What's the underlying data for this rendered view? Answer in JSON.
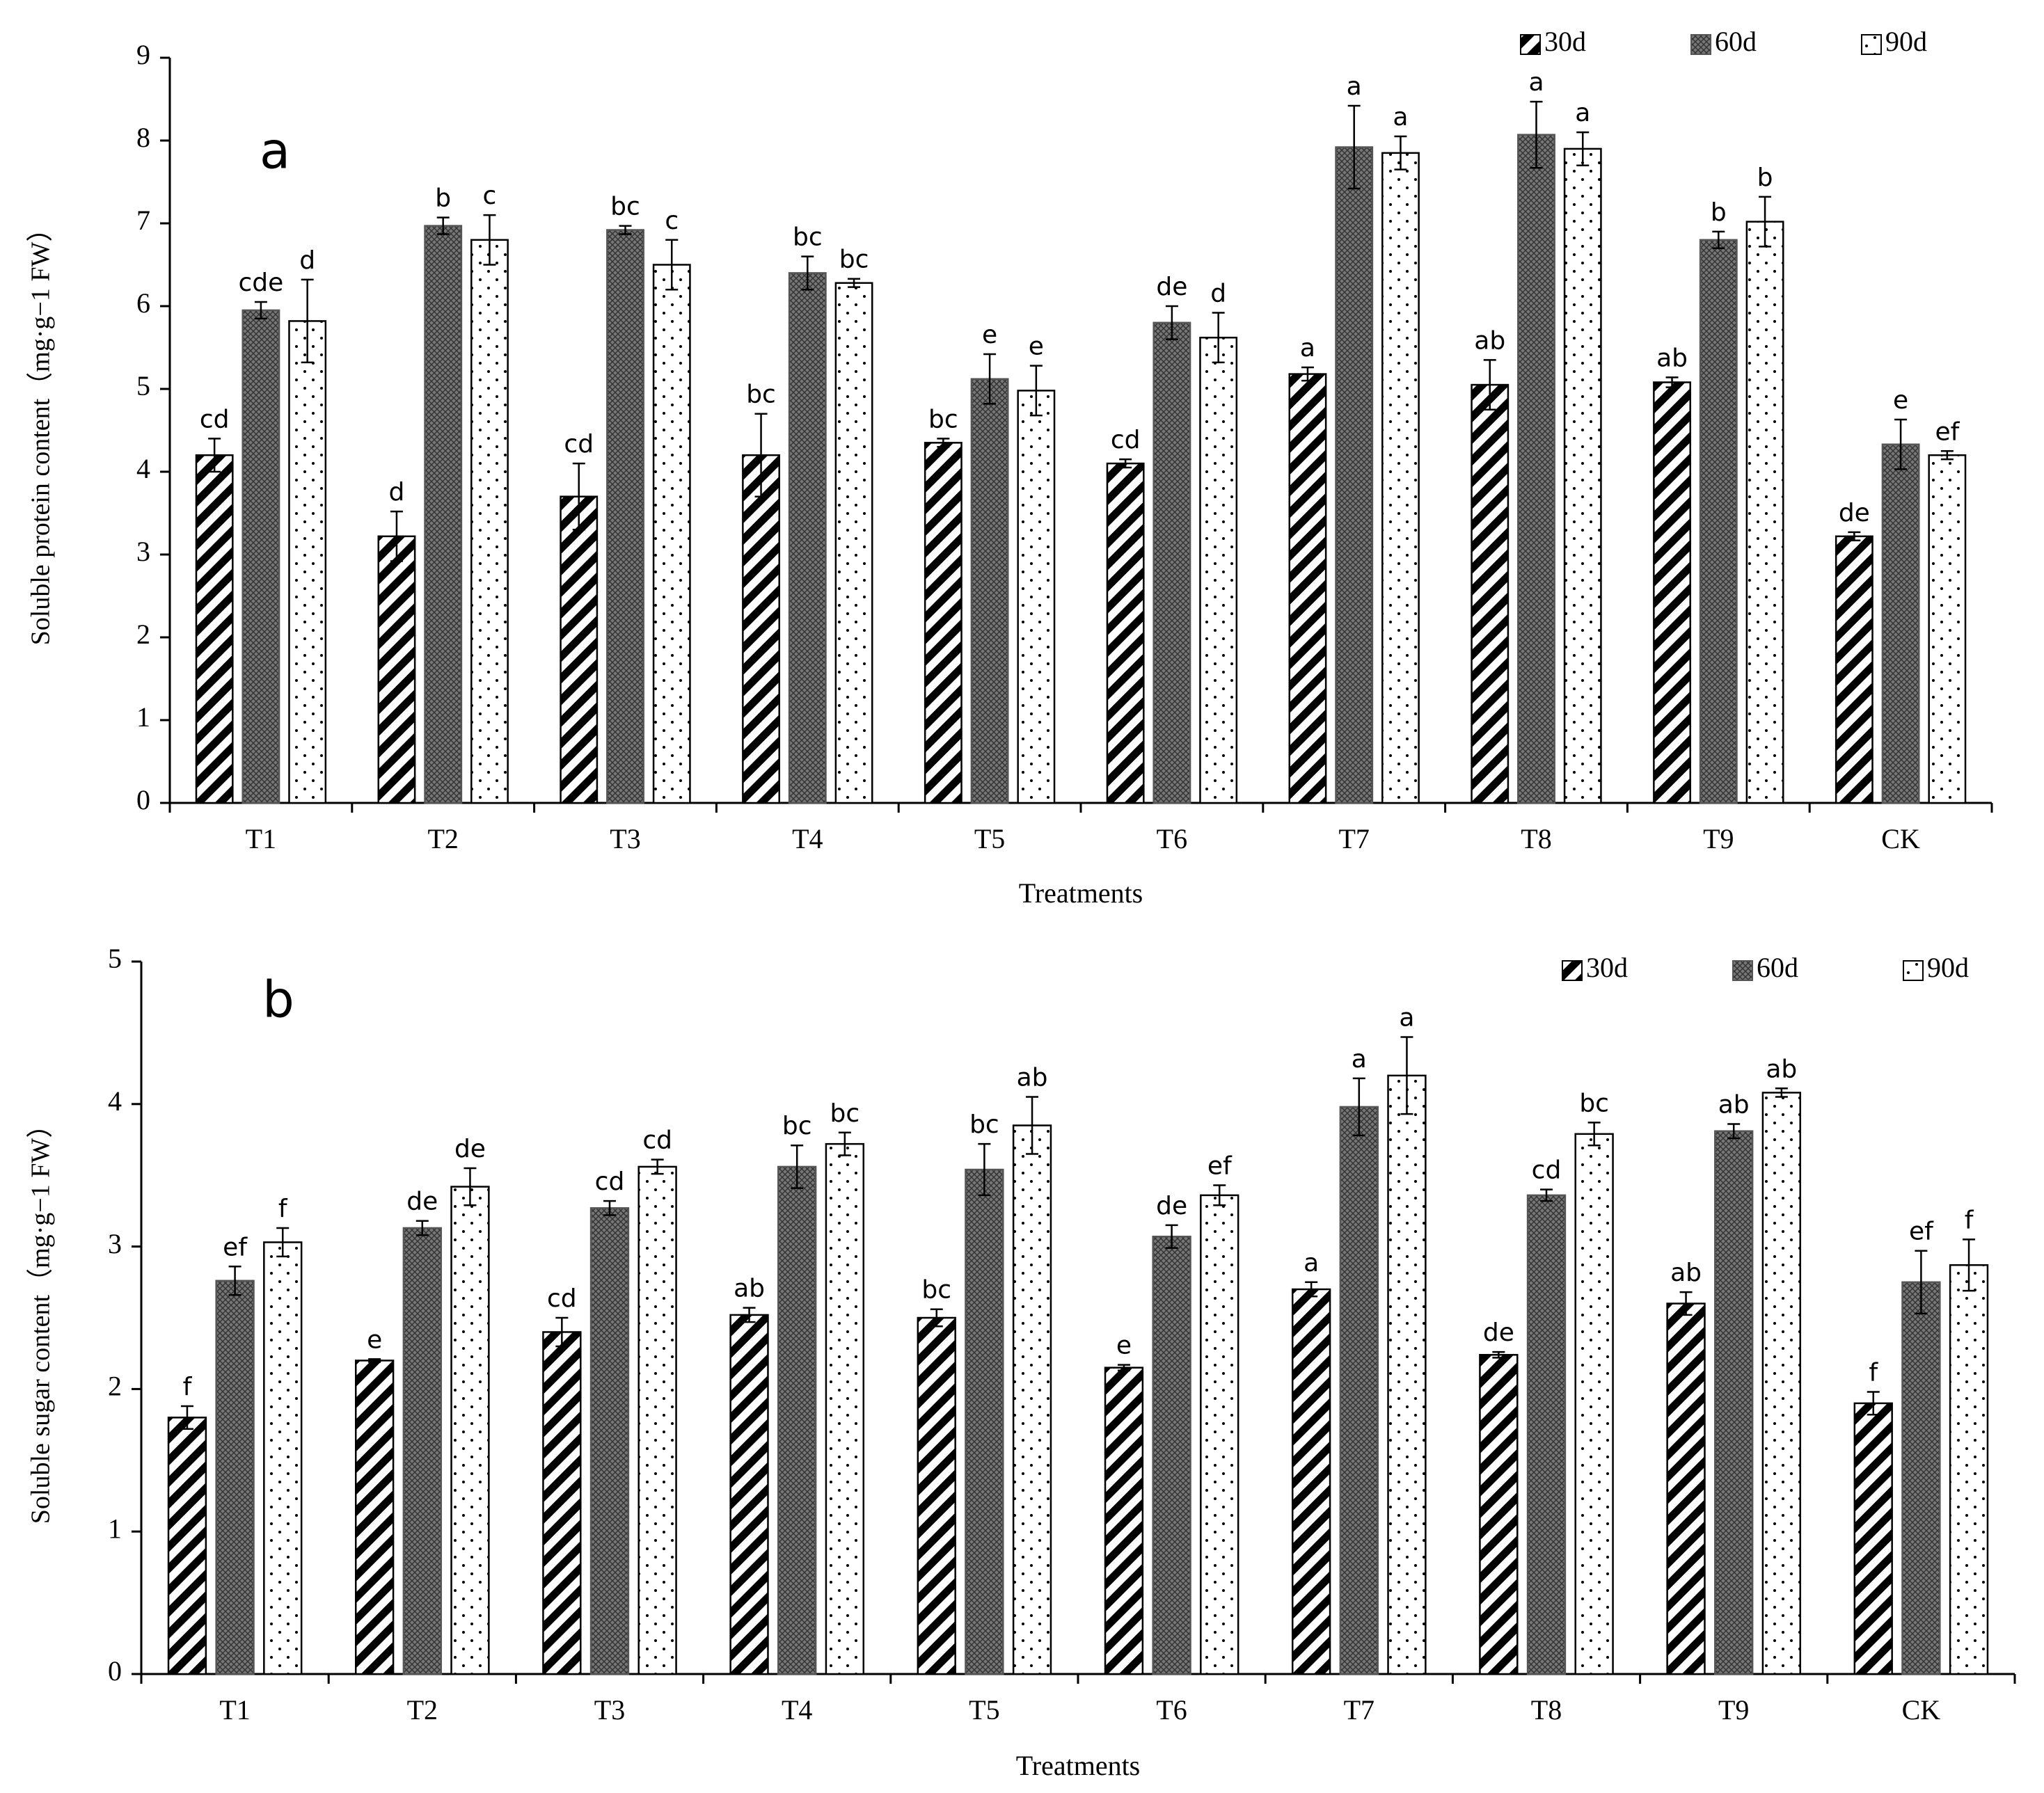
{
  "chart_data": [
    {
      "type": "bar",
      "panel": "a",
      "y_label": "Soluble protein content（mg·g−1 FW）",
      "x_label": "Treatments",
      "categories": [
        "T1",
        "T2",
        "T3",
        "T4",
        "T5",
        "T6",
        "T7",
        "T8",
        "T9",
        "CK"
      ],
      "ylim": [
        0,
        9
      ],
      "yticks": [
        0,
        1,
        2,
        3,
        4,
        5,
        6,
        7,
        8,
        9
      ],
      "series": [
        {
          "name": "30d",
          "color": "#000000",
          "pattern": "stripes",
          "values": [
            4.2,
            3.22,
            3.7,
            4.2,
            4.35,
            4.1,
            5.18,
            5.05,
            5.08,
            3.22
          ],
          "errors": [
            0.2,
            0.3,
            0.4,
            0.5,
            0.05,
            0.05,
            0.08,
            0.3,
            0.06,
            0.05
          ],
          "letters": [
            "cd",
            "d",
            "cd",
            "bc",
            "bc",
            "cd",
            "a",
            "ab",
            "ab",
            "de"
          ]
        },
        {
          "name": "60d",
          "color": "#555555",
          "pattern": "crosshatch",
          "values": [
            5.95,
            6.97,
            6.92,
            6.4,
            5.12,
            5.8,
            7.92,
            8.07,
            6.8,
            4.33
          ],
          "errors": [
            0.1,
            0.1,
            0.05,
            0.2,
            0.3,
            0.2,
            0.5,
            0.4,
            0.1,
            0.3
          ],
          "letters": [
            "cde",
            "b",
            "bc",
            "bc",
            "e",
            "de",
            "a",
            "a",
            "b",
            "e"
          ]
        },
        {
          "name": "90d",
          "color": "#000000",
          "pattern": "dots",
          "values": [
            5.82,
            6.8,
            6.5,
            6.28,
            4.98,
            5.62,
            7.85,
            7.9,
            7.02,
            4.2
          ],
          "errors": [
            0.5,
            0.3,
            0.3,
            0.05,
            0.3,
            0.3,
            0.2,
            0.2,
            0.3,
            0.05
          ],
          "letters": [
            "d",
            "c",
            "c",
            "bc",
            "e",
            "d",
            "a",
            "a",
            "b",
            "ef"
          ]
        }
      ]
    },
    {
      "type": "bar",
      "panel": "b",
      "y_label": "Soluble sugar content（mg·g−1 FW）",
      "x_label": "Treatments",
      "categories": [
        "T1",
        "T2",
        "T3",
        "T4",
        "T5",
        "T6",
        "T7",
        "T8",
        "T9",
        "CK"
      ],
      "ylim": [
        0,
        5
      ],
      "yticks": [
        0,
        1,
        2,
        3,
        4,
        5
      ],
      "series": [
        {
          "name": "30d",
          "color": "#000000",
          "pattern": "stripes",
          "values": [
            1.8,
            2.2,
            2.4,
            2.52,
            2.5,
            2.15,
            2.7,
            2.24,
            2.6,
            1.9
          ],
          "errors": [
            0.08,
            0.01,
            0.1,
            0.05,
            0.06,
            0.02,
            0.05,
            0.02,
            0.08,
            0.08
          ],
          "letters": [
            "f",
            "e",
            "cd",
            "ab",
            "bc",
            "e",
            "a",
            "de",
            "ab",
            "f"
          ]
        },
        {
          "name": "60d",
          "color": "#555555",
          "pattern": "crosshatch",
          "values": [
            2.76,
            3.13,
            3.27,
            3.56,
            3.54,
            3.07,
            3.98,
            3.36,
            3.81,
            2.75
          ],
          "errors": [
            0.1,
            0.05,
            0.05,
            0.15,
            0.18,
            0.08,
            0.2,
            0.04,
            0.05,
            0.22
          ],
          "letters": [
            "ef",
            "de",
            "cd",
            "bc",
            "bc",
            "de",
            "a",
            "cd",
            "ab",
            "ef"
          ]
        },
        {
          "name": "90d",
          "color": "#000000",
          "pattern": "dots",
          "values": [
            3.03,
            3.42,
            3.56,
            3.72,
            3.85,
            3.36,
            4.2,
            3.79,
            4.08,
            2.87
          ],
          "errors": [
            0.1,
            0.13,
            0.05,
            0.08,
            0.2,
            0.07,
            0.27,
            0.08,
            0.03,
            0.18
          ],
          "letters": [
            "f",
            "de",
            "cd",
            "bc",
            "ab",
            "ef",
            "a",
            "bc",
            "ab",
            "f"
          ]
        }
      ]
    }
  ]
}
